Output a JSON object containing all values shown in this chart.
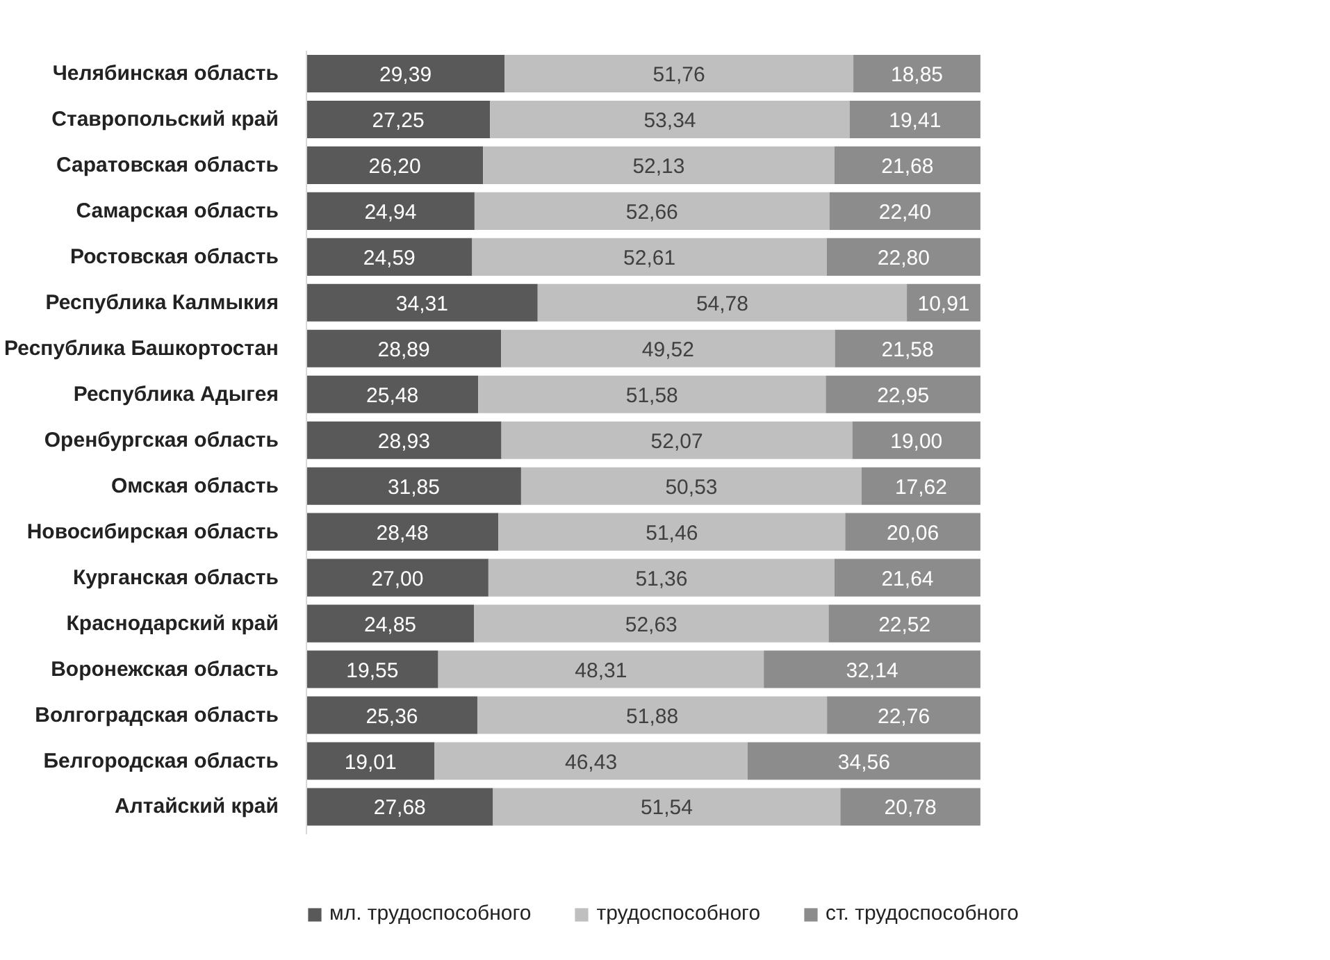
{
  "chart_data": {
    "type": "bar",
    "orientation": "horizontal",
    "stacked": true,
    "grid": false,
    "legend": "bottom",
    "tick_labels": "y",
    "categories": [
      "Челябинская область",
      "Ставропольский край",
      "Саратовская область",
      "Самарская область",
      "Ростовская область",
      "Республика Калмыкия",
      "Республика Башкортостан",
      "Республика Адыгея",
      "Оренбургская область",
      "Омская область",
      "Новосибирская область",
      "Курганская область",
      "Краснодарский край",
      "Воронежская область",
      "Волгоградская область",
      "Белгородская область",
      "Алтайский край"
    ],
    "series": [
      {
        "name": "мл. трудоспособного",
        "color": "#595959",
        "values": [
          29.39,
          27.25,
          26.2,
          24.94,
          24.59,
          34.31,
          28.89,
          25.48,
          28.93,
          31.85,
          28.48,
          27.0,
          24.85,
          19.55,
          25.36,
          19.01,
          27.68
        ],
        "value_labels": [
          "29,39",
          "27,25",
          "26,20",
          "24,94",
          "24,59",
          "34,31",
          "28,89",
          "25,48",
          "28,93",
          "31,85",
          "28,48",
          "27,00",
          "24,85",
          "19,55",
          "25,36",
          "19,01",
          "27,68"
        ]
      },
      {
        "name": "трудоспособного",
        "color": "#bfbfbf",
        "values": [
          51.76,
          53.34,
          52.13,
          52.66,
          52.61,
          54.78,
          49.52,
          51.58,
          52.07,
          50.53,
          51.46,
          51.36,
          52.63,
          48.31,
          51.88,
          46.43,
          51.54
        ],
        "value_labels": [
          "51,76",
          "53,34",
          "52,13",
          "52,66",
          "52,61",
          "54,78",
          "49,52",
          "51,58",
          "52,07",
          "50,53",
          "51,46",
          "51,36",
          "52,63",
          "48,31",
          "51,88",
          "46,43",
          "51,54"
        ]
      },
      {
        "name": "ст. трудоспособного",
        "color": "#8c8c8c",
        "values": [
          18.85,
          19.41,
          21.68,
          22.4,
          22.8,
          10.91,
          21.58,
          22.95,
          19.0,
          17.62,
          20.06,
          21.64,
          22.52,
          32.14,
          22.76,
          34.56,
          20.78
        ],
        "value_labels": [
          "18,85",
          "19,41",
          "21,68",
          "22,40",
          "22,80",
          "10,91",
          "21,58",
          "22,95",
          "19,00",
          "17,62",
          "20,06",
          "21,64",
          "22,52",
          "32,14",
          "22,76",
          "34,56",
          "20,78"
        ]
      }
    ]
  }
}
